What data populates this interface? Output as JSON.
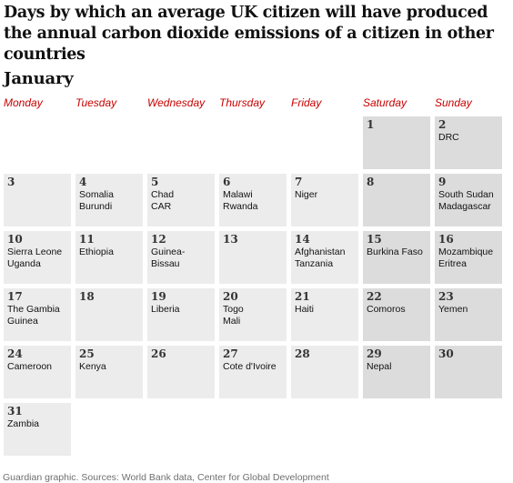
{
  "title": "Days by which an average UK citizen will have produced the annual carbon dioxide emissions of a citizen in other countries",
  "month": "January",
  "weekdays": [
    "Monday",
    "Tuesday",
    "Wednesday",
    "Thursday",
    "Friday",
    "Saturday",
    "Sunday"
  ],
  "days": [
    {
      "day": "1",
      "countries": []
    },
    {
      "day": "2",
      "countries": [
        "DRC"
      ]
    },
    {
      "day": "3",
      "countries": []
    },
    {
      "day": "4",
      "countries": [
        "Somalia",
        "Burundi"
      ]
    },
    {
      "day": "5",
      "countries": [
        "Chad",
        "CAR"
      ]
    },
    {
      "day": "6",
      "countries": [
        "Malawi",
        "Rwanda"
      ]
    },
    {
      "day": "7",
      "countries": [
        "Niger"
      ]
    },
    {
      "day": "8",
      "countries": []
    },
    {
      "day": "9",
      "countries": [
        "South Sudan",
        "Madagascar"
      ]
    },
    {
      "day": "10",
      "countries": [
        "Sierra Leone",
        "Uganda"
      ]
    },
    {
      "day": "11",
      "countries": [
        "Ethiopia"
      ]
    },
    {
      "day": "12",
      "countries": [
        "Guinea-Bissau"
      ]
    },
    {
      "day": "13",
      "countries": []
    },
    {
      "day": "14",
      "countries": [
        "Afghanistan",
        "Tanzania"
      ]
    },
    {
      "day": "15",
      "countries": [
        "Burkina Faso"
      ]
    },
    {
      "day": "16",
      "countries": [
        "Mozambique",
        "Eritrea"
      ]
    },
    {
      "day": "17",
      "countries": [
        "The Gambia",
        "Guinea"
      ]
    },
    {
      "day": "18",
      "countries": []
    },
    {
      "day": "19",
      "countries": [
        "Liberia"
      ]
    },
    {
      "day": "20",
      "countries": [
        "Togo",
        "Mali"
      ]
    },
    {
      "day": "21",
      "countries": [
        "Haiti"
      ]
    },
    {
      "day": "22",
      "countries": [
        "Comoros"
      ]
    },
    {
      "day": "23",
      "countries": [
        "Yemen"
      ]
    },
    {
      "day": "24",
      "countries": [
        "Cameroon"
      ]
    },
    {
      "day": "25",
      "countries": [
        "Kenya"
      ]
    },
    {
      "day": "26",
      "countries": []
    },
    {
      "day": "27",
      "countries": [
        "Cote d'Ivoire"
      ]
    },
    {
      "day": "28",
      "countries": []
    },
    {
      "day": "29",
      "countries": [
        "Nepal"
      ]
    },
    {
      "day": "30",
      "countries": []
    },
    {
      "day": "31",
      "countries": [
        "Zambia"
      ]
    }
  ],
  "source": "Guardian graphic. Sources: World Bank data, Center for Global Development",
  "colors": {
    "weekday_cell": "#ececec",
    "weekend_cell": "#dcdcdc",
    "weekday_label": "#c70000"
  }
}
